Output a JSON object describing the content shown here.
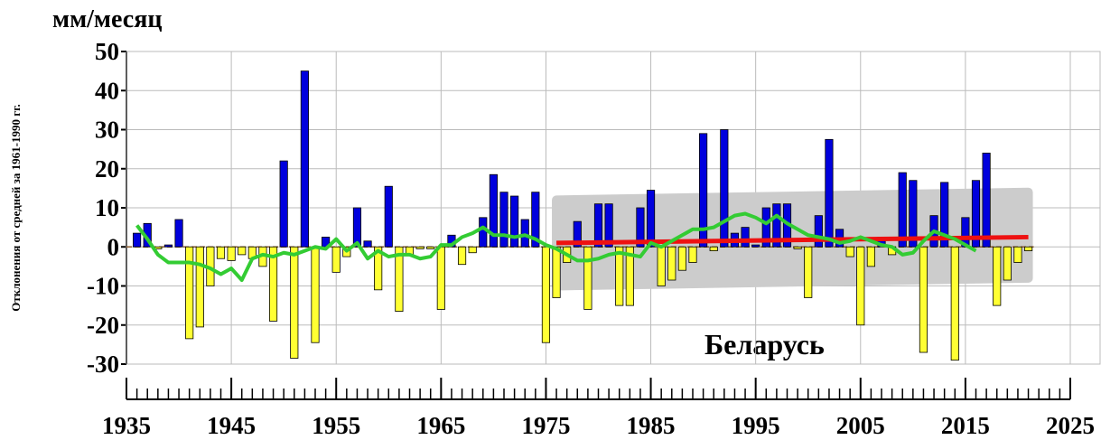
{
  "chart_data": {
    "type": "bar",
    "title": "мм/месяц",
    "y_label": "Отклонения от средней за 1961-1990 гг.",
    "annotation": "Беларусь",
    "xlim": [
      1935,
      2025
    ],
    "xticks": [
      1935,
      1945,
      1955,
      1965,
      1975,
      1985,
      1995,
      2005,
      2015,
      2025
    ],
    "ylim": [
      -30,
      50
    ],
    "yticks": [
      -30,
      -20,
      -10,
      0,
      10,
      20,
      30,
      40,
      50
    ],
    "grid": true,
    "color_positive": "#0000dd",
    "color_negative": "#ffff33",
    "x": [
      1936,
      1937,
      1938,
      1939,
      1940,
      1941,
      1942,
      1943,
      1944,
      1945,
      1946,
      1947,
      1948,
      1949,
      1950,
      1951,
      1952,
      1953,
      1954,
      1955,
      1956,
      1957,
      1958,
      1959,
      1960,
      1961,
      1962,
      1963,
      1964,
      1965,
      1966,
      1967,
      1968,
      1969,
      1970,
      1971,
      1972,
      1973,
      1974,
      1975,
      1976,
      1977,
      1978,
      1979,
      1980,
      1981,
      1982,
      1983,
      1984,
      1985,
      1986,
      1987,
      1988,
      1989,
      1990,
      1991,
      1992,
      1993,
      1994,
      1995,
      1996,
      1997,
      1998,
      1999,
      2000,
      2001,
      2002,
      2003,
      2004,
      2005,
      2006,
      2007,
      2008,
      2009,
      2010,
      2011,
      2012,
      2013,
      2014,
      2015,
      2016,
      2017,
      2018,
      2019,
      2020,
      2021
    ],
    "values": [
      3.5,
      6,
      -0.5,
      0.5,
      7,
      -23.5,
      -20.5,
      -10,
      -3,
      -3.5,
      -2,
      -3,
      -5,
      -19,
      22,
      -28.5,
      45,
      -24.5,
      2.5,
      -6.5,
      -2.5,
      10,
      1.5,
      -11,
      15.5,
      -16.5,
      -2,
      -0.5,
      -0.5,
      -16,
      3,
      -4.5,
      -1.5,
      7.5,
      18.5,
      14,
      13,
      7,
      14,
      -24.5,
      -13,
      -4,
      6.5,
      -16,
      11,
      11,
      -15,
      -15,
      10,
      14.5,
      -10,
      -8.5,
      -6,
      -4,
      29,
      -1,
      30,
      3.5,
      5,
      0.5,
      10,
      11,
      11,
      -0.5,
      -13,
      8,
      27.5,
      4.5,
      -2.5,
      -20,
      -5,
      2.5,
      -2,
      19,
      17,
      -27,
      8,
      16.5,
      -29,
      7.5,
      17,
      24,
      -15,
      -8.5,
      -4,
      -1
    ],
    "smooth": {
      "color": "#33cc33",
      "x": [
        1936,
        1937,
        1938,
        1939,
        1940,
        1941,
        1942,
        1943,
        1944,
        1945,
        1946,
        1947,
        1948,
        1949,
        1950,
        1951,
        1952,
        1953,
        1954,
        1955,
        1956,
        1957,
        1958,
        1959,
        1960,
        1961,
        1962,
        1963,
        1964,
        1965,
        1966,
        1967,
        1968,
        1969,
        1970,
        1971,
        1972,
        1973,
        1974,
        1975,
        1976,
        1977,
        1978,
        1979,
        1980,
        1981,
        1982,
        1983,
        1984,
        1985,
        1986,
        1987,
        1988,
        1989,
        1990,
        1991,
        1992,
        1993,
        1994,
        1995,
        1996,
        1997,
        1998,
        1999,
        2000,
        2001,
        2002,
        2003,
        2004,
        2005,
        2006,
        2007,
        2008,
        2009,
        2010,
        2011,
        2012,
        2013,
        2014,
        2015,
        2016
      ],
      "values": [
        5.5,
        2,
        -2,
        -4,
        -4,
        -4,
        -4.5,
        -5.5,
        -7,
        -5.5,
        -8.5,
        -3,
        -2,
        -2.5,
        -1.5,
        -2,
        -1,
        0,
        -0.5,
        2,
        -1,
        1,
        -3,
        -1,
        -2.5,
        -2,
        -2,
        -3,
        -2.5,
        0.5,
        0.5,
        2.5,
        3.5,
        5,
        3,
        3,
        2.5,
        3,
        2,
        0.5,
        -0.5,
        -2,
        -3.5,
        -3.5,
        -3,
        -2,
        -1.5,
        -2,
        -2.5,
        1,
        0,
        1.5,
        3,
        4.5,
        4.5,
        5,
        6.5,
        8,
        8.5,
        7.5,
        6,
        8,
        6,
        4.5,
        3,
        2.5,
        2,
        1,
        1.5,
        2.5,
        1.5,
        0.5,
        0,
        -2,
        -1.5,
        1.5,
        4,
        3,
        2,
        0.5,
        -1
      ]
    },
    "trend": {
      "color": "#ee1111",
      "x": [
        1976,
        2021
      ],
      "values": [
        1,
        2.5
      ]
    },
    "band": {
      "color": "#cccccc",
      "x": [
        1976,
        2021
      ],
      "upper": [
        12,
        14
      ],
      "lower": [
        -10,
        -8
      ]
    }
  }
}
